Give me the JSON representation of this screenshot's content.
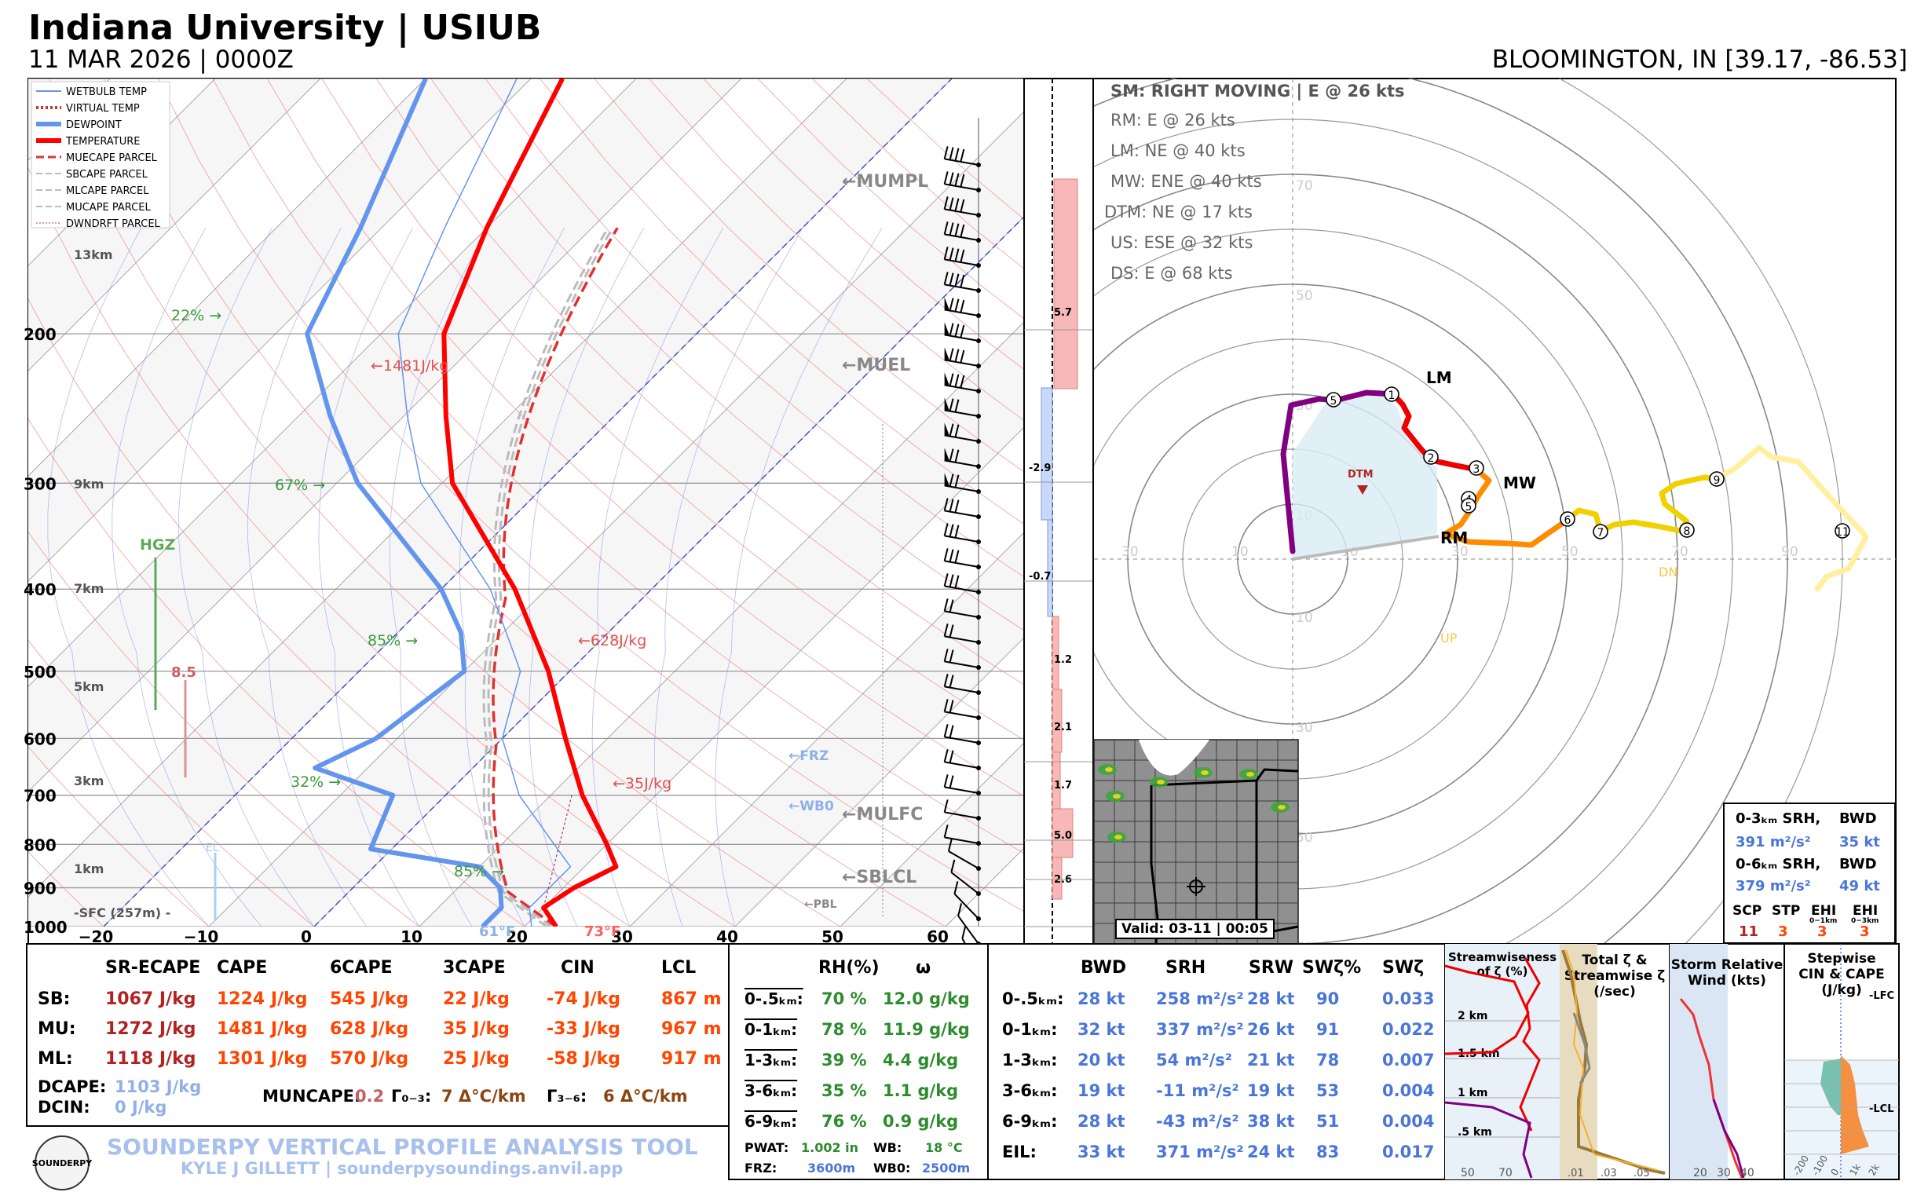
{
  "header": {
    "title": "Indiana University | USIUB",
    "subtitle": "11 MAR 2026 | 0000Z",
    "station": "BLOOMINGTON, IN [39.17, -86.53]"
  },
  "colors": {
    "temperature": "#ff0000",
    "dewpoint": "#6495ed",
    "wetbulb": "#6495ed",
    "parcel_gray": "#bbbbbb",
    "srh_blue": "#4a76d8",
    "sb_red": "#b22222",
    "cape_orange": "#ff4500",
    "rh_green": "#2e8b2e",
    "hgz_green": "#5aaa5a"
  },
  "skewt": {
    "legend": [
      "WETBULB TEMP",
      "VIRTUAL TEMP",
      "DEWPOINT",
      "TEMPERATURE",
      "MUECAPE PARCEL",
      "SBCAPE PARCEL",
      "MLCAPE PARCEL",
      "MUCAPE PARCEL",
      "DWNDRFT PARCEL"
    ],
    "pressure_labels": [
      "200",
      "300",
      "400",
      "500",
      "600",
      "700",
      "800",
      "900",
      "1000"
    ],
    "temp_labels": [
      "−20",
      "−10",
      "0",
      "10",
      "20",
      "30",
      "40",
      "50",
      "60"
    ],
    "height_labels": [
      "13km",
      "9km",
      "7km",
      "5km",
      "3km",
      "1km",
      "-SFC (257m) -"
    ],
    "rh_labels": [
      "22% →",
      "67% →",
      "85% →",
      "32% →",
      "85% →"
    ],
    "cape_labels": [
      "←1481J/kg",
      "←628J/kg",
      "←35J/kg"
    ],
    "level_labels": [
      "←MUMPL",
      "←MUEL",
      "←MULFC",
      "←SBLCL"
    ],
    "small_level_labels": [
      "←FRZ",
      "←WB0",
      "←PBL"
    ],
    "hgz_label": "HGZ",
    "lapse_label": "8.5",
    "el_label": "EL",
    "sfc_dewpoint": "61°F",
    "sfc_temp": "73°F",
    "inflow_values": [
      "5.7",
      "-2.9",
      "-0.7",
      "1.2",
      "2.1",
      "1.7",
      "5.0",
      "2.6"
    ]
  },
  "hodograph": {
    "storm_motion": "SM: RIGHT MOVING | E @ 26 kts",
    "motions": [
      "RM: E @ 26 kts",
      "LM: NE @ 40 kts",
      "MW: ENE @ 40 kts",
      "DTM: NE @ 17 kts",
      "US: ESE @ 32 kts",
      "DS: E @ 68 kts"
    ],
    "ring_labels_top": [
      "70",
      "50",
      "30",
      "10"
    ],
    "ring_labels_bottom": [
      "10",
      "30",
      "50",
      "70"
    ],
    "ring_labels_left": [
      "30",
      "10"
    ],
    "ring_labels_right": [
      "10",
      "30",
      "50",
      "70",
      "90"
    ],
    "markers": [
      "LM",
      "MW",
      "RM",
      "DTM"
    ],
    "upd_labels": [
      "UP",
      "DN"
    ],
    "point_labels": [
      "1",
      "2",
      "3",
      "4",
      "5",
      "5",
      "6",
      "7",
      "8",
      "9",
      "11"
    ],
    "valid": "Valid: 03-11 | 00:05",
    "inset": {
      "srh03_label": "0-3ₖₘ SRH,",
      "bwd_label": "BWD",
      "srh03": "391 m²/s²",
      "bwd03": "35 kt",
      "srh06_label": "0-6ₖₘ SRH,",
      "bwd06_label": "BWD",
      "srh06": "379 m²/s²",
      "bwd06": "49 kt",
      "idx_labels": [
        "SCP",
        "STP",
        "EHI",
        "EHI"
      ],
      "idx_sub": [
        "",
        "",
        "0−1km",
        "0−3km"
      ],
      "idx_values": [
        "11",
        "3",
        "3",
        "3"
      ]
    }
  },
  "thermo_table": {
    "columns": [
      "SR-ECAPE",
      "CAPE",
      "6CAPE",
      "3CAPE",
      "CIN",
      "LCL"
    ],
    "rows": [
      {
        "label": "SB:",
        "values": [
          "1067 J/kg",
          "1224 J/kg",
          "545 J/kg",
          "22 J/kg",
          "-74 J/kg",
          "867 m"
        ]
      },
      {
        "label": "MU:",
        "values": [
          "1272 J/kg",
          "1481 J/kg",
          "628 J/kg",
          "35 J/kg",
          "-33 J/kg",
          "967 m"
        ]
      },
      {
        "label": "ML:",
        "values": [
          "1118 J/kg",
          "1301 J/kg",
          "570 J/kg",
          "25 J/kg",
          "-58 J/kg",
          "917 m"
        ]
      }
    ],
    "dcape_label": "DCAPE:",
    "dcape": "1103 J/kg",
    "dcin_label": "DCIN:",
    "dcin": "0 J/kg",
    "mucape_label": "MUNCAPE:",
    "mucape": "0.2",
    "g03_label": "Γ₀₋₃:",
    "g03": "7 Δ°C/km",
    "g36_label": "Γ₃₋₆:",
    "g36": "6 Δ°C/km",
    "footer_title": "SOUNDERPY VERTICAL PROFILE ANALYSIS TOOL",
    "footer_credit": "KYLE J GILLETT | sounderpysoundings.anvil.app",
    "logo": "SOUNDERPY"
  },
  "moisture_table": {
    "columns": [
      "RH(%)",
      "ω"
    ],
    "rows": [
      {
        "label": "0-.5ₖₘ:",
        "rh": "70 %",
        "w": "12.0 g/kg"
      },
      {
        "label": "0-1ₖₘ:",
        "rh": "78 %",
        "w": "11.9 g/kg"
      },
      {
        "label": "1-3ₖₘ:",
        "rh": "39 %",
        "w": "4.4 g/kg"
      },
      {
        "label": "3-6ₖₘ:",
        "rh": "35 %",
        "w": "1.1 g/kg"
      },
      {
        "label": "6-9ₖₘ:",
        "rh": "76 %",
        "w": "0.9 g/kg"
      }
    ],
    "pwat_label": "PWAT:",
    "pwat": "1.002 in",
    "wb_label": "WB:",
    "wb": "18 °C",
    "frz_label": "FRZ:",
    "frz": "3600m",
    "wb0_label": "WB0:",
    "wb0": "2500m"
  },
  "kinematic_table": {
    "columns": [
      "BWD",
      "SRH",
      "SRW",
      "SWζ%",
      "SWζ"
    ],
    "rows": [
      {
        "label": "0-.5ₖₘ:",
        "values": [
          "28 kt",
          "258 m²/s²",
          "28 kt",
          "90",
          "0.033"
        ]
      },
      {
        "label": "0-1ₖₘ:",
        "values": [
          "32 kt",
          "337 m²/s²",
          "26 kt",
          "91",
          "0.022"
        ]
      },
      {
        "label": "1-3ₖₘ:",
        "values": [
          "20 kt",
          "54 m²/s²",
          "21 kt",
          "78",
          "0.007"
        ]
      },
      {
        "label": "3-6ₖₘ:",
        "values": [
          "19 kt",
          "-11 m²/s²",
          "19 kt",
          "53",
          "0.004"
        ]
      },
      {
        "label": "6-9ₖₘ:",
        "values": [
          "28 kt",
          "-43 m²/s²",
          "38 kt",
          "51",
          "0.004"
        ]
      },
      {
        "label": "EIL:",
        "values": [
          "33 kt",
          "371 m²/s²",
          "24 kt",
          "83",
          "0.017"
        ]
      }
    ]
  },
  "mini_panels": {
    "sw_title": [
      "Streamwiseness",
      "of ζ (%)"
    ],
    "sw_ticks": [
      "2 km",
      "1.5 km",
      "1 km",
      ".5 km"
    ],
    "sw_xticks": [
      "50",
      "70"
    ],
    "tz_title": [
      "Total ζ &",
      "Streamwise ζ",
      "(/sec)"
    ],
    "tz_xticks": [
      ".01",
      ".03",
      ".05"
    ],
    "srw_title": [
      "Storm Relative",
      "Wind (kts)"
    ],
    "srw_xticks": [
      "20",
      "30",
      "40"
    ],
    "cc_title": [
      "Stepwise",
      "CIN & CAPE",
      "(J/kg)"
    ],
    "cc_labels": [
      "-LFC",
      "-LCL"
    ],
    "cc_xticks": [
      "-200",
      "-100",
      "0",
      "1k",
      "2k"
    ]
  },
  "chart_data": {
    "type": "skew-t log-p sounding",
    "title": "Indiana University | USIUB",
    "pressure_axis_hPa": [
      200,
      300,
      400,
      500,
      600,
      700,
      800,
      900,
      1000
    ],
    "temperature_axis_C": [
      -20,
      -10,
      0,
      10,
      20,
      30,
      40,
      50,
      60
    ],
    "surface": {
      "temperature_F": 73,
      "dewpoint_F": 61,
      "elevation_m": 257
    },
    "temperature_profile": [
      {
        "p": 1000,
        "t": 23
      },
      {
        "p": 950,
        "t": 20
      },
      {
        "p": 900,
        "t": 21
      },
      {
        "p": 850,
        "t": 23
      },
      {
        "p": 800,
        "t": 20
      },
      {
        "p": 700,
        "t": 13
      },
      {
        "p": 600,
        "t": 6
      },
      {
        "p": 500,
        "t": -2
      },
      {
        "p": 400,
        "t": -13
      },
      {
        "p": 300,
        "t": -29
      },
      {
        "p": 250,
        "t": -36
      },
      {
        "p": 200,
        "t": -44
      },
      {
        "p": 150,
        "t": -50
      },
      {
        "p": 100,
        "t": -57
      }
    ],
    "dewpoint_profile": [
      {
        "p": 1000,
        "td": 16
      },
      {
        "p": 950,
        "td": 16
      },
      {
        "p": 900,
        "td": 14
      },
      {
        "p": 850,
        "td": 10
      },
      {
        "p": 810,
        "td": -2
      },
      {
        "p": 700,
        "td": -5
      },
      {
        "p": 650,
        "td": -15
      },
      {
        "p": 600,
        "td": -12
      },
      {
        "p": 500,
        "td": -10
      },
      {
        "p": 450,
        "td": -14
      },
      {
        "p": 400,
        "td": -20
      },
      {
        "p": 300,
        "td": -38
      },
      {
        "p": 250,
        "td": -47
      },
      {
        "p": 200,
        "td": -57
      },
      {
        "p": 150,
        "td": -62
      },
      {
        "p": 100,
        "td": -70
      }
    ],
    "hodograph_rings_kt": [
      10,
      20,
      30,
      40,
      50,
      60,
      70,
      80,
      90,
      100
    ]
  }
}
